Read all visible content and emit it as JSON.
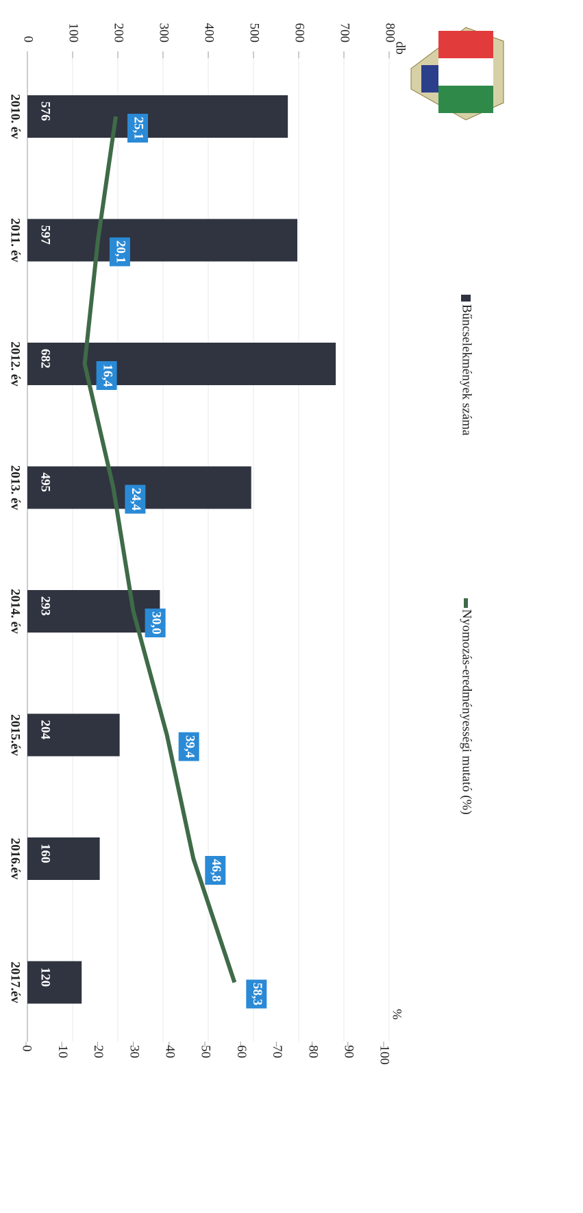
{
  "chart_data": {
    "type": "bar-line",
    "categories": [
      "2010. év",
      "2011. év",
      "2012. év",
      "2013. év",
      "2014. év",
      "2015.év",
      "2016.év",
      "2017.év"
    ],
    "series": [
      {
        "name": "Bűncselekmények száma",
        "type": "bar",
        "color": "#2f3440",
        "values": [
          576,
          597,
          682,
          495,
          293,
          204,
          160,
          120
        ]
      },
      {
        "name": "Nyomozás-eredményességi mutató (%)",
        "type": "line",
        "axis": "y2",
        "color": "#3f6b48",
        "label_color": "#2a8ad6",
        "values": [
          25.1,
          20.1,
          16.4,
          24.4,
          30.0,
          39.4,
          46.8,
          58.3
        ],
        "value_labels": [
          "25,1",
          "20,1",
          "16,4",
          "24,4",
          "30,0",
          "39,4",
          "46,8",
          "58,3"
        ]
      }
    ],
    "ylabel": "db",
    "y2label": "%",
    "ylim": [
      0,
      800
    ],
    "yticks": [
      0,
      100,
      200,
      300,
      400,
      500,
      600,
      700,
      800
    ],
    "y2lim": [
      0,
      100
    ],
    "y2ticks": [
      0,
      10,
      20,
      30,
      40,
      50,
      60,
      70,
      80,
      90,
      100
    ],
    "grid": true
  }
}
